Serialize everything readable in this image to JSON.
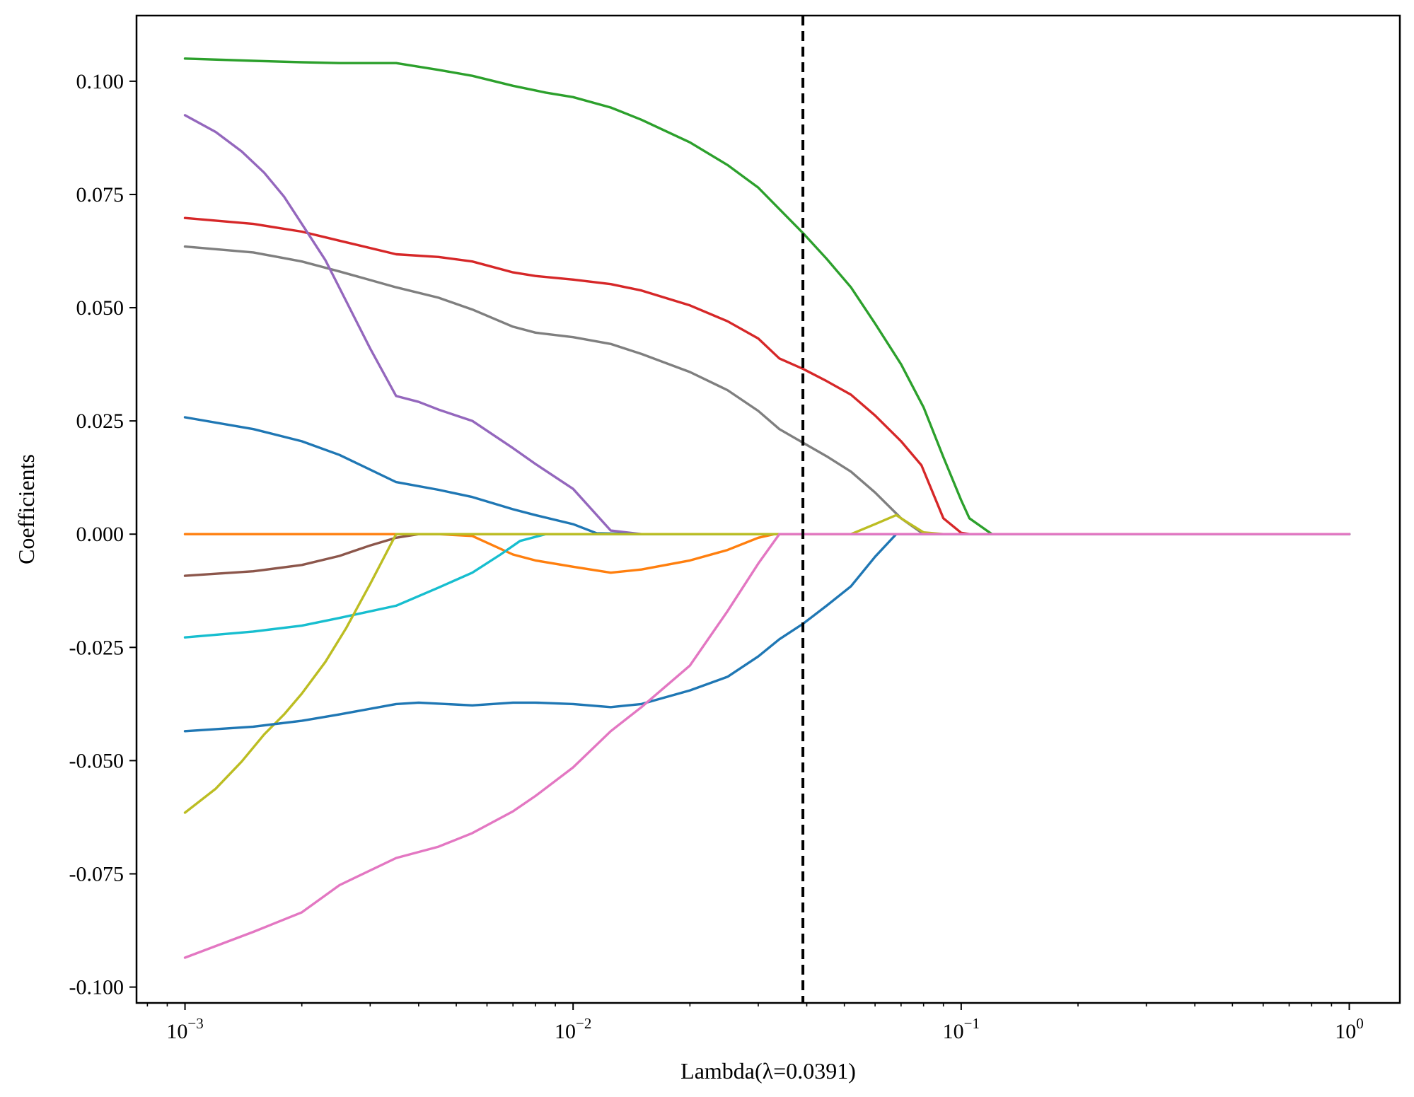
{
  "chart_data": {
    "type": "line",
    "xlabel": "Lambda(λ=0.0391)",
    "ylabel": "Coefficients",
    "xscale": "log",
    "xlim": [
      0.00075,
      1.35
    ],
    "ylim": [
      -0.1035,
      0.1145
    ],
    "x_ticks": [
      {
        "value": 0.001,
        "base": "10",
        "exp": "−3"
      },
      {
        "value": 0.01,
        "base": "10",
        "exp": "−2"
      },
      {
        "value": 0.1,
        "base": "10",
        "exp": "−1"
      },
      {
        "value": 1,
        "base": "10",
        "exp": "0"
      }
    ],
    "y_ticks": [
      {
        "value": 0.1,
        "label": "0.100"
      },
      {
        "value": 0.075,
        "label": "0.075"
      },
      {
        "value": 0.05,
        "label": "0.050"
      },
      {
        "value": 0.025,
        "label": "0.025"
      },
      {
        "value": 0.0,
        "label": "0.000"
      },
      {
        "value": -0.025,
        "label": "-0.025"
      },
      {
        "value": -0.05,
        "label": "-0.050"
      },
      {
        "value": -0.075,
        "label": "-0.075"
      },
      {
        "value": -0.1,
        "label": "-0.100"
      }
    ],
    "grid": false,
    "legend": "none",
    "vline": {
      "x": 0.0391,
      "style": "dashed",
      "color": "#000000"
    },
    "series": [
      {
        "color": "#2ca02c",
        "points": [
          [
            0.001,
            0.105
          ],
          [
            0.0015,
            0.1045
          ],
          [
            0.002,
            0.1042
          ],
          [
            0.0025,
            0.104
          ],
          [
            0.0035,
            0.104
          ],
          [
            0.0045,
            0.1025
          ],
          [
            0.0055,
            0.1012
          ],
          [
            0.007,
            0.099
          ],
          [
            0.0085,
            0.0975
          ],
          [
            0.01,
            0.0965
          ],
          [
            0.0125,
            0.0942
          ],
          [
            0.015,
            0.0915
          ],
          [
            0.02,
            0.0865
          ],
          [
            0.025,
            0.0815
          ],
          [
            0.03,
            0.0765
          ],
          [
            0.0391,
            0.0665
          ],
          [
            0.045,
            0.0608
          ],
          [
            0.052,
            0.0545
          ],
          [
            0.06,
            0.0465
          ],
          [
            0.07,
            0.0375
          ],
          [
            0.08,
            0.028
          ],
          [
            0.09,
            0.017
          ],
          [
            0.1,
            0.0075
          ],
          [
            0.105,
            0.0035
          ],
          [
            0.12,
            0.0
          ],
          [
            1.0,
            0.0
          ]
        ]
      },
      {
        "color": "#d62728",
        "points": [
          [
            0.001,
            0.0698
          ],
          [
            0.0015,
            0.0685
          ],
          [
            0.002,
            0.0668
          ],
          [
            0.0025,
            0.0648
          ],
          [
            0.0035,
            0.0618
          ],
          [
            0.0045,
            0.0612
          ],
          [
            0.0055,
            0.0602
          ],
          [
            0.007,
            0.0578
          ],
          [
            0.008,
            0.057
          ],
          [
            0.01,
            0.0562
          ],
          [
            0.0125,
            0.0552
          ],
          [
            0.015,
            0.0538
          ],
          [
            0.02,
            0.0505
          ],
          [
            0.025,
            0.047
          ],
          [
            0.03,
            0.0432
          ],
          [
            0.034,
            0.0388
          ],
          [
            0.0391,
            0.0365
          ],
          [
            0.045,
            0.0338
          ],
          [
            0.052,
            0.0308
          ],
          [
            0.06,
            0.0262
          ],
          [
            0.07,
            0.0205
          ],
          [
            0.079,
            0.0152
          ],
          [
            0.09,
            0.0035
          ],
          [
            0.1,
            0.0003
          ],
          [
            0.105,
            0.0
          ],
          [
            1.0,
            0.0
          ]
        ]
      },
      {
        "color": "#7f7f7f",
        "points": [
          [
            0.001,
            0.0635
          ],
          [
            0.0015,
            0.0622
          ],
          [
            0.002,
            0.0602
          ],
          [
            0.0025,
            0.058
          ],
          [
            0.0035,
            0.0545
          ],
          [
            0.0045,
            0.0522
          ],
          [
            0.0055,
            0.0496
          ],
          [
            0.007,
            0.0458
          ],
          [
            0.008,
            0.0445
          ],
          [
            0.01,
            0.0435
          ],
          [
            0.0125,
            0.042
          ],
          [
            0.015,
            0.0398
          ],
          [
            0.02,
            0.0358
          ],
          [
            0.025,
            0.0318
          ],
          [
            0.03,
            0.0272
          ],
          [
            0.034,
            0.0232
          ],
          [
            0.0391,
            0.0202
          ],
          [
            0.045,
            0.0172
          ],
          [
            0.052,
            0.0138
          ],
          [
            0.06,
            0.0092
          ],
          [
            0.07,
            0.0035
          ],
          [
            0.08,
            0.0
          ],
          [
            1.0,
            0.0
          ]
        ]
      },
      {
        "color": "#9467bd",
        "points": [
          [
            0.001,
            0.0925
          ],
          [
            0.0012,
            0.0888
          ],
          [
            0.0014,
            0.0845
          ],
          [
            0.0016,
            0.0798
          ],
          [
            0.0018,
            0.0745
          ],
          [
            0.002,
            0.0685
          ],
          [
            0.0023,
            0.0605
          ],
          [
            0.0026,
            0.0515
          ],
          [
            0.003,
            0.041
          ],
          [
            0.0035,
            0.0305
          ],
          [
            0.004,
            0.0292
          ],
          [
            0.0045,
            0.0275
          ],
          [
            0.0055,
            0.025
          ],
          [
            0.007,
            0.019
          ],
          [
            0.008,
            0.0155
          ],
          [
            0.01,
            0.01
          ],
          [
            0.0125,
            0.0008
          ],
          [
            0.015,
            0.0
          ],
          [
            1.0,
            0.0
          ]
        ]
      },
      {
        "color": "#1f77b4",
        "points": [
          [
            0.001,
            0.0258
          ],
          [
            0.0015,
            0.0232
          ],
          [
            0.002,
            0.0205
          ],
          [
            0.0025,
            0.0175
          ],
          [
            0.0035,
            0.0115
          ],
          [
            0.0045,
            0.0098
          ],
          [
            0.0055,
            0.0082
          ],
          [
            0.007,
            0.0055
          ],
          [
            0.008,
            0.0042
          ],
          [
            0.01,
            0.0022
          ],
          [
            0.0115,
            0.0002
          ],
          [
            0.015,
            0.0
          ],
          [
            1.0,
            0.0
          ]
        ]
      },
      {
        "color": "#ff7f0e",
        "points": [
          [
            0.001,
            0.0
          ],
          [
            0.0045,
            0.0
          ],
          [
            0.0055,
            -0.0004
          ],
          [
            0.007,
            -0.0045
          ],
          [
            0.008,
            -0.0058
          ],
          [
            0.01,
            -0.0072
          ],
          [
            0.0125,
            -0.0085
          ],
          [
            0.015,
            -0.0078
          ],
          [
            0.02,
            -0.0058
          ],
          [
            0.025,
            -0.0035
          ],
          [
            0.03,
            -0.0008
          ],
          [
            0.033,
            0.0
          ],
          [
            1.0,
            0.0
          ]
        ]
      },
      {
        "color": "#8c564b",
        "points": [
          [
            0.001,
            -0.0092
          ],
          [
            0.0015,
            -0.0082
          ],
          [
            0.002,
            -0.0068
          ],
          [
            0.0025,
            -0.0048
          ],
          [
            0.003,
            -0.0025
          ],
          [
            0.0035,
            -0.0008
          ],
          [
            0.004,
            0.0
          ],
          [
            1.0,
            0.0
          ]
        ]
      },
      {
        "color": "#17becf",
        "points": [
          [
            0.001,
            -0.0228
          ],
          [
            0.0015,
            -0.0215
          ],
          [
            0.002,
            -0.0202
          ],
          [
            0.0025,
            -0.0185
          ],
          [
            0.0035,
            -0.0158
          ],
          [
            0.0045,
            -0.0118
          ],
          [
            0.0055,
            -0.0085
          ],
          [
            0.0065,
            -0.0045
          ],
          [
            0.0073,
            -0.0015
          ],
          [
            0.0085,
            0.0
          ],
          [
            1.0,
            0.0
          ]
        ]
      },
      {
        "color": "#bcbd22",
        "points": [
          [
            0.001,
            -0.0615
          ],
          [
            0.0012,
            -0.0562
          ],
          [
            0.0014,
            -0.0502
          ],
          [
            0.0016,
            -0.0442
          ],
          [
            0.0018,
            -0.0398
          ],
          [
            0.002,
            -0.0352
          ],
          [
            0.0023,
            -0.0282
          ],
          [
            0.0026,
            -0.0208
          ],
          [
            0.003,
            -0.011
          ],
          [
            0.0035,
            0.0
          ],
          [
            0.052,
            0.0
          ],
          [
            0.06,
            0.0022
          ],
          [
            0.068,
            0.0042
          ],
          [
            0.073,
            0.0025
          ],
          [
            0.08,
            0.0004
          ],
          [
            0.09,
            0.0
          ],
          [
            1.0,
            0.0
          ]
        ]
      },
      {
        "color": "#1f77b4",
        "points": [
          [
            0.001,
            -0.0435
          ],
          [
            0.0015,
            -0.0425
          ],
          [
            0.002,
            -0.0412
          ],
          [
            0.0025,
            -0.0398
          ],
          [
            0.0035,
            -0.0375
          ],
          [
            0.004,
            -0.0372
          ],
          [
            0.0055,
            -0.0378
          ],
          [
            0.007,
            -0.0372
          ],
          [
            0.008,
            -0.0372
          ],
          [
            0.01,
            -0.0375
          ],
          [
            0.0125,
            -0.0382
          ],
          [
            0.015,
            -0.0375
          ],
          [
            0.02,
            -0.0345
          ],
          [
            0.025,
            -0.0315
          ],
          [
            0.03,
            -0.027
          ],
          [
            0.034,
            -0.0232
          ],
          [
            0.0391,
            -0.0198
          ],
          [
            0.045,
            -0.0158
          ],
          [
            0.052,
            -0.0115
          ],
          [
            0.06,
            -0.005
          ],
          [
            0.068,
            0.0
          ],
          [
            1.0,
            0.0
          ]
        ]
      },
      {
        "color": "#e377c2",
        "points": [
          [
            0.001,
            -0.0935
          ],
          [
            0.0015,
            -0.0878
          ],
          [
            0.002,
            -0.0835
          ],
          [
            0.0025,
            -0.0775
          ],
          [
            0.0035,
            -0.0715
          ],
          [
            0.0045,
            -0.069
          ],
          [
            0.0055,
            -0.066
          ],
          [
            0.007,
            -0.0612
          ],
          [
            0.008,
            -0.0578
          ],
          [
            0.01,
            -0.0515
          ],
          [
            0.0125,
            -0.0435
          ],
          [
            0.015,
            -0.0382
          ],
          [
            0.02,
            -0.029
          ],
          [
            0.025,
            -0.017
          ],
          [
            0.03,
            -0.0065
          ],
          [
            0.034,
            0.0
          ],
          [
            1.0,
            0.0
          ]
        ]
      }
    ]
  }
}
